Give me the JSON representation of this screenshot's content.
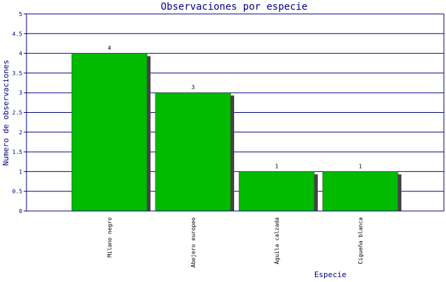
{
  "chart_data": {
    "type": "bar",
    "title": "Observaciones por especie",
    "xlabel": "Especie",
    "ylabel": "Numero de observaciones",
    "categories": [
      "Milano negro",
      "Abejero europeo",
      "Águila calzada",
      "Cigueña blanca"
    ],
    "values": [
      4,
      3,
      1,
      1
    ],
    "data_labels": [
      "4",
      "3",
      "1",
      "1"
    ],
    "ylim": [
      0,
      5
    ],
    "yticks": [
      "0",
      "0.5",
      "1",
      "1.5",
      "2",
      "2.5",
      "3",
      "3.5",
      "4",
      "4.5",
      "5"
    ],
    "grid": true,
    "legend": "none",
    "colors": {
      "bar": "#00bb00",
      "bar_shadow": "#444444",
      "axis": "#000080",
      "grid": "#000080",
      "text": "#000080",
      "label_text": "#000000",
      "background": "#ffffff"
    }
  }
}
